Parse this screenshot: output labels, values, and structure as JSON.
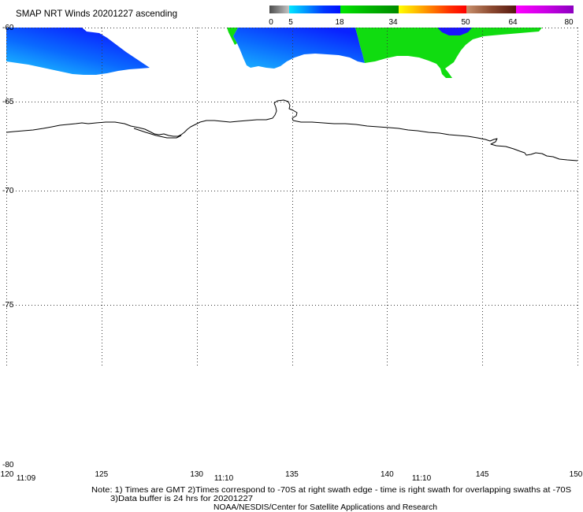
{
  "title": "SMAP NRT Winds 20201227 ascending",
  "colorbar": {
    "labels": [
      "0",
      "5",
      "18",
      "34",
      "50",
      "64",
      "80"
    ],
    "segments": [
      {
        "from": 0,
        "to": 5,
        "colors": [
          "#4c4c4c",
          "#c4c4c4"
        ]
      },
      {
        "from": 5,
        "to": 18,
        "colors": [
          "#00e8ff",
          "#0094ff",
          "#0038ff",
          "#0010ff"
        ]
      },
      {
        "from": 18,
        "to": 34,
        "colors": [
          "#00e600",
          "#00b400",
          "#008a00"
        ]
      },
      {
        "from": 34,
        "to": 50,
        "colors": [
          "#ffff00",
          "#ffc000",
          "#ff7800",
          "#ff3000",
          "#ff0000"
        ]
      },
      {
        "from": 50,
        "to": 64,
        "colors": [
          "#c8906c",
          "#8c4a30",
          "#561810"
        ]
      },
      {
        "from": 64,
        "to": 80,
        "colors": [
          "#ff00ff",
          "#cc00e6",
          "#8c00c0"
        ]
      }
    ]
  },
  "map": {
    "lat_labels": [
      "-60",
      "-65",
      "-70",
      "-75",
      "-80"
    ],
    "lon_labels": [
      "120",
      "125",
      "130",
      "135",
      "140",
      "145",
      "150"
    ],
    "lat_range": [
      -80,
      -60
    ],
    "lon_range": [
      120,
      150
    ],
    "swath_times": [
      "11:09",
      "11:10",
      "11:10"
    ],
    "colors": {
      "wind_cyan": "#1ab4ff",
      "wind_mid": "#0a6aff",
      "wind_blue": "#0a22ff",
      "wind_dark_blue": "#1a14ff",
      "wind_green": "#10dc10",
      "coastline": "#000000",
      "grid": "#3a3a3a"
    }
  },
  "notes": [
    "Note: 1) Times are GMT 2)Times correspond to -70S at right swath edge - time is right swath for overlapping swaths at -70S",
    "3)Data buffer is 24 hrs for 20201227"
  ],
  "credit": "NOAA/NESDIS/Center for Satellite Applications and Research"
}
